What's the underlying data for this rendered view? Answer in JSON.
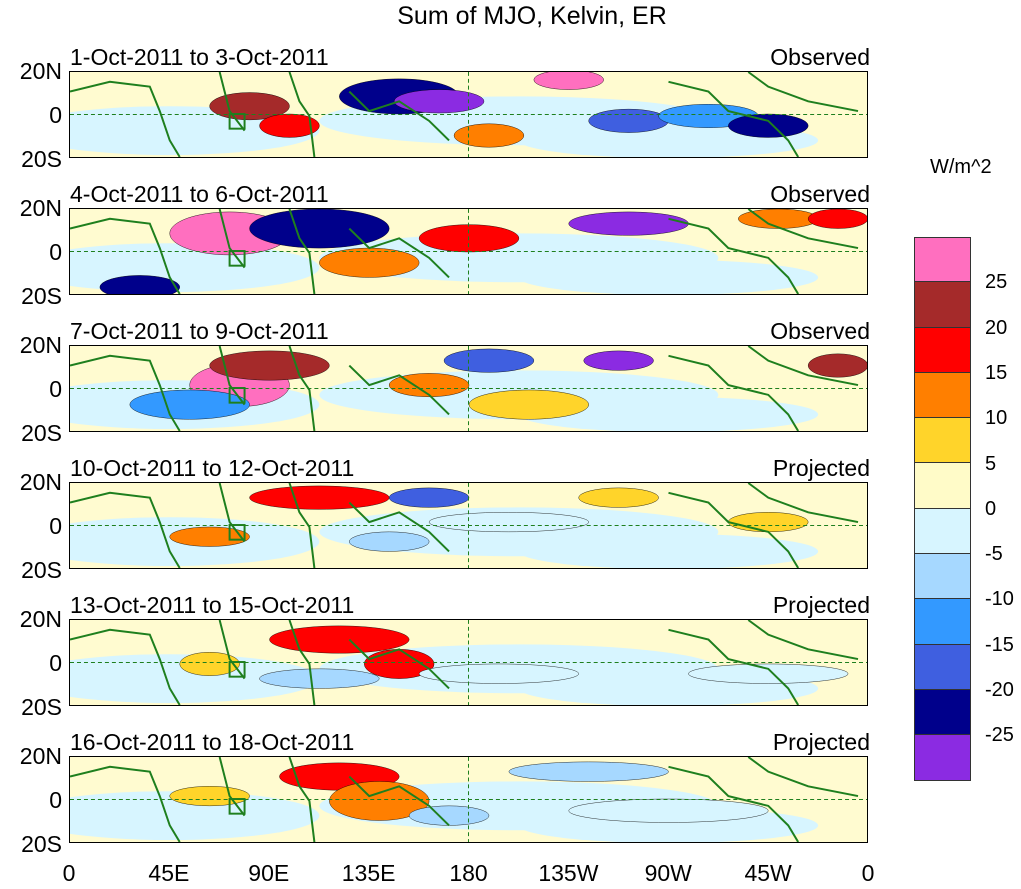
{
  "title": "Sum of MJO, Kelvin, ER",
  "lat_labels": {
    "top": "20N",
    "equator": "0",
    "bottom": "20S"
  },
  "panels": [
    {
      "label": "1-Oct-2011 to 3-Oct-2011",
      "type": "Observed"
    },
    {
      "label": "4-Oct-2011 to 6-Oct-2011",
      "type": "Observed"
    },
    {
      "label": "7-Oct-2011 to 9-Oct-2011",
      "type": "Observed"
    },
    {
      "label": "10-Oct-2011 to 12-Oct-2011",
      "type": "Projected"
    },
    {
      "label": "13-Oct-2011 to 15-Oct-2011",
      "type": "Projected"
    },
    {
      "label": "16-Oct-2011 to 18-Oct-2011",
      "type": "Projected"
    }
  ],
  "x_ticks": [
    "0",
    "45E",
    "90E",
    "135E",
    "180",
    "135W",
    "90W",
    "45W",
    "0"
  ],
  "colorbar": {
    "units": "W/m^2",
    "labels": [
      "25",
      "20",
      "15",
      "10",
      "5",
      "0",
      "-5",
      "-10",
      "-15",
      "-20",
      "-25"
    ],
    "colors": [
      "#ff6fbf",
      "#a52a2a",
      "#ff0000",
      "#ff7f00",
      "#ffd42a",
      "#fffbc8",
      "#d7f5ff",
      "#a6d8ff",
      "#3399ff",
      "#3f5fe0",
      "#00008b",
      "#8b2be2"
    ]
  },
  "colors": {
    "coast": "#1e7f1e",
    "grid": "#1e7f1e"
  }
}
